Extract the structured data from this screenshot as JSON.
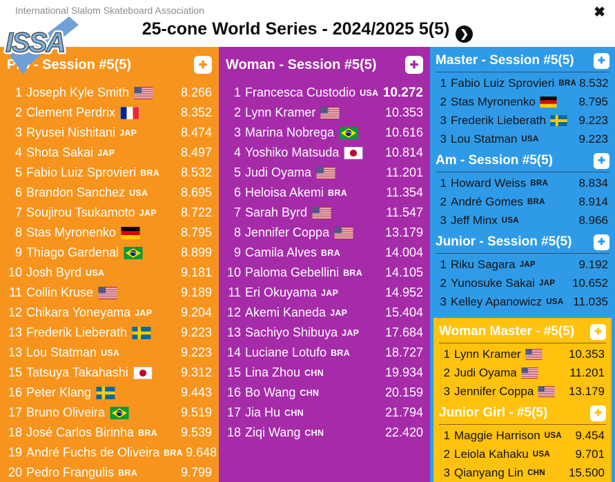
{
  "header": {
    "association": "International Slalom Skateboard Association",
    "logo_text": "ISSA",
    "title": "25-cone World Series - 2024/2025 5(5)"
  },
  "icons": {
    "close": "✖",
    "chevron": "❯",
    "plus": "✚"
  },
  "colors": {
    "orange": "#F7941D",
    "purple": "#A62BA9",
    "blue": "#2F9BE8",
    "amber": "#FFC20E",
    "logo_blue": "#7FB2E0"
  },
  "panels": {
    "pro": {
      "title": "Pro - Session #5(5)",
      "rows": [
        {
          "rank": "1",
          "name": "Joseph Kyle Smith",
          "flag": "USA",
          "score": "8.266"
        },
        {
          "rank": "2",
          "name": "Clement Perdrix",
          "flag": "FRA",
          "score": "8.352"
        },
        {
          "rank": "3",
          "name": "Ryusei Nishitani",
          "code": "JAP",
          "score": "8.474"
        },
        {
          "rank": "4",
          "name": "Shota Sakai",
          "code": "JAP",
          "score": "8.497"
        },
        {
          "rank": "5",
          "name": "Fabio Luiz Sprovieri",
          "code": "BRA",
          "score": "8.532"
        },
        {
          "rank": "6",
          "name": "Brandon Sanchez",
          "code": "USA",
          "score": "8.695"
        },
        {
          "rank": "7",
          "name": "Soujirou Tsukamoto",
          "code": "JAP",
          "score": "8.722"
        },
        {
          "rank": "8",
          "name": "Stas Myronenko",
          "flag": "GER",
          "score": "8.795"
        },
        {
          "rank": "9",
          "name": "Thiago Gardenal",
          "flag": "BRA",
          "score": "8.899"
        },
        {
          "rank": "10",
          "name": "Josh Byrd",
          "code": "USA",
          "score": "9.181"
        },
        {
          "rank": "11",
          "name": "Collin Kruse",
          "flag": "USA",
          "score": "9.189"
        },
        {
          "rank": "12",
          "name": "Chikara Yoneyama",
          "code": "JAP",
          "score": "9.204"
        },
        {
          "rank": "13",
          "name": "Frederik Lieberath",
          "flag": "SWE",
          "score": "9.223"
        },
        {
          "rank": "13",
          "name": "Lou Statman",
          "code": "USA",
          "score": "9.223"
        },
        {
          "rank": "15",
          "name": "Tatsuya Takahashi",
          "flag": "JPN",
          "score": "9.312"
        },
        {
          "rank": "16",
          "name": "Peter Klang",
          "flag": "SWE",
          "score": "9.443"
        },
        {
          "rank": "17",
          "name": "Bruno Oliveira",
          "flag": "BRA",
          "score": "9.519"
        },
        {
          "rank": "18",
          "name": "José Carlos Birinha",
          "code": "BRA",
          "score": "9.539"
        },
        {
          "rank": "19",
          "name": "André Fuchs de Oliveira",
          "code": "BRA",
          "score": "9.648"
        },
        {
          "rank": "20",
          "name": "Pedro Frangulis",
          "code": "BRA",
          "score": "9.799"
        }
      ]
    },
    "woman": {
      "title": "Woman - Session #5(5)",
      "rows": [
        {
          "rank": "1",
          "name": "Francesca Custodio",
          "code": "USA",
          "score": "10.272",
          "score_bold": true
        },
        {
          "rank": "2",
          "name": "Lynn Kramer",
          "flag": "USA",
          "score": "10.353"
        },
        {
          "rank": "3",
          "name": "Marina Nobrega",
          "flag": "BRA",
          "score": "10.616"
        },
        {
          "rank": "4",
          "name": "Yoshiko Matsuda",
          "flag": "JPN",
          "score": "10.814"
        },
        {
          "rank": "5",
          "name": "Judi Oyama",
          "flag": "USA",
          "score": "11.201"
        },
        {
          "rank": "6",
          "name": "Heloisa Akemi",
          "code": "BRA",
          "score": "11.354"
        },
        {
          "rank": "7",
          "name": "Sarah Byrd",
          "flag": "USA",
          "score": "11.547"
        },
        {
          "rank": "8",
          "name": "Jennifer Coppa",
          "flag": "USA",
          "score": "13.179"
        },
        {
          "rank": "9",
          "name": "Camila Alves",
          "code": "BRA",
          "score": "14.004"
        },
        {
          "rank": "10",
          "name": "Paloma Gebellini",
          "code": "BRA",
          "score": "14.105"
        },
        {
          "rank": "11",
          "name": "Eri Okuyama",
          "code": "JAP",
          "score": "14.952"
        },
        {
          "rank": "12",
          "name": "Akemi Kaneda",
          "code": "JAP",
          "score": "15.404"
        },
        {
          "rank": "13",
          "name": "Sachiyo Shibuya",
          "code": "JAP",
          "score": "17.684"
        },
        {
          "rank": "14",
          "name": "Luciane Lotufo",
          "code": "BRA",
          "score": "18.727"
        },
        {
          "rank": "15",
          "name": "Lina Zhou",
          "code": "CHN",
          "score": "19.934"
        },
        {
          "rank": "16",
          "name": "Bo Wang",
          "code": "CHN",
          "score": "20.159"
        },
        {
          "rank": "17",
          "name": "Jia Hu",
          "code": "CHN",
          "score": "21.794"
        },
        {
          "rank": "18",
          "name": "Ziqi Wang",
          "code": "CHN",
          "score": "22.420"
        }
      ]
    },
    "master": {
      "title": "Master - Session #5(5)",
      "rows": [
        {
          "rank": "1",
          "name": "Fabio Luiz Sprovieri",
          "code": "BRA",
          "score": "8.532"
        },
        {
          "rank": "2",
          "name": "Stas Myronenko",
          "flag": "GER",
          "score": "8.795"
        },
        {
          "rank": "3",
          "name": "Frederik Lieberath",
          "flag": "SWE",
          "score": "9.223"
        },
        {
          "rank": "3",
          "name": "Lou Statman",
          "code": "USA",
          "score": "9.223"
        }
      ]
    },
    "am": {
      "title": "Am - Session #5(5)",
      "rows": [
        {
          "rank": "1",
          "name": "Howard Weiss",
          "code": "BRA",
          "score": "8.834"
        },
        {
          "rank": "2",
          "name": "André Gomes",
          "code": "BRA",
          "score": "8.914"
        },
        {
          "rank": "3",
          "name": "Jeff Minx",
          "code": "USA",
          "score": "8.966"
        }
      ]
    },
    "junior": {
      "title": "Junior - Session #5(5)",
      "rows": [
        {
          "rank": "1",
          "name": "Riku Sagara",
          "code": "JAP",
          "score": "9.192"
        },
        {
          "rank": "2",
          "name": "Yunosuke Sakai",
          "code": "JAP",
          "score": "10.652"
        },
        {
          "rank": "3",
          "name": "Kelley Apanowicz",
          "code": "USA",
          "score": "11.035"
        }
      ]
    },
    "woman_master": {
      "title": "Woman Master - #5(5)",
      "rows": [
        {
          "rank": "1",
          "name": "Lynn Kramer",
          "flag": "USA",
          "score": "10.353"
        },
        {
          "rank": "2",
          "name": "Judi Oyama",
          "flag": "USA",
          "score": "11.201"
        },
        {
          "rank": "3",
          "name": "Jennifer Coppa",
          "flag": "USA",
          "score": "13.179"
        }
      ]
    },
    "junior_girl": {
      "title": "Junior Girl - #5(5)",
      "rows": [
        {
          "rank": "1",
          "name": "Maggie Harrison",
          "code": "USA",
          "score": "9.454"
        },
        {
          "rank": "2",
          "name": "Leiola Kahaku",
          "code": "USA",
          "score": "9.701"
        },
        {
          "rank": "3",
          "name": "Qianyang Lin",
          "code": "CHN",
          "score": "15.500"
        }
      ]
    }
  }
}
